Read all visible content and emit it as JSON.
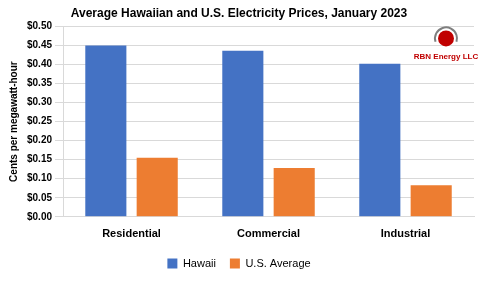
{
  "chart_data": {
    "type": "bar",
    "title": "Average Hawaiian and U.S. Electricity Prices, January 2023",
    "y_label": "Cents per megawatt-hour",
    "categories": [
      "Residential",
      "Commercial",
      "Industrial"
    ],
    "series": [
      {
        "name": "Hawaii",
        "color": "#4472c4",
        "values": [
          0.45,
          0.436,
          0.402
        ]
      },
      {
        "name": "U.S. Average",
        "color": "#ed7d31",
        "values": [
          0.155,
          0.128,
          0.083
        ]
      }
    ],
    "ylim": [
      0,
      0.5
    ],
    "yticks": [
      {
        "value": 0,
        "label": "$0.00"
      },
      {
        "value": 0.05,
        "label": "$0.05"
      },
      {
        "value": 0.1,
        "label": "$0.10"
      },
      {
        "value": 0.15,
        "label": "$0.15"
      },
      {
        "value": 0.2,
        "label": "$0.20"
      },
      {
        "value": 0.25,
        "label": "$0.25"
      },
      {
        "value": 0.3,
        "label": "$0.30"
      },
      {
        "value": 0.35,
        "label": "$0.35"
      },
      {
        "value": 0.4,
        "label": "$0.40"
      },
      {
        "value": 0.45,
        "label": "$0.45"
      },
      {
        "value": 0.5,
        "label": "$0.50"
      }
    ],
    "grid": true,
    "legend": "bottom",
    "annotations": [
      "RBN Energy LLC"
    ]
  }
}
